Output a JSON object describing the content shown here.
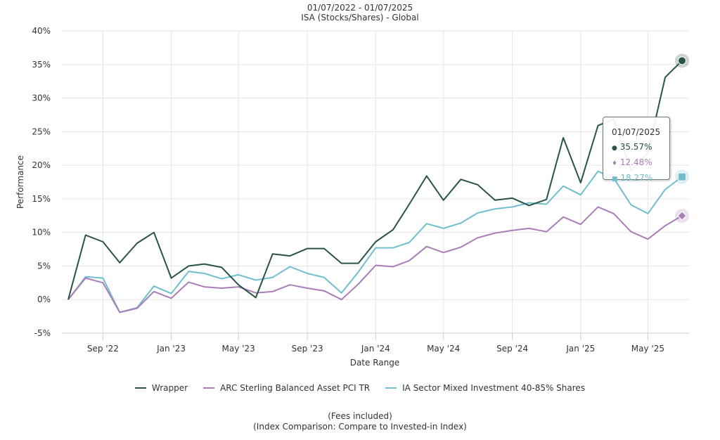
{
  "header": {
    "period": "01/07/2022 - 01/07/2025",
    "wrapper_line": "ISA (Stocks/Shares) - Global"
  },
  "footer": {
    "fees": "(Fees included)",
    "comparison": "(Index Comparison: Compare to Invested-in Index)"
  },
  "tooltip": {
    "date": "01/07/2025",
    "values": [
      {
        "symbol": "●",
        "text": "35.57%"
      },
      {
        "symbol": "♦",
        "text": "12.48%"
      },
      {
        "symbol": "■",
        "text": "18.27%"
      }
    ]
  },
  "chart_data": {
    "type": "line",
    "xlabel": "Date Range",
    "ylabel": "Performance",
    "ylim": [
      -5,
      40
    ],
    "xlim": [
      "2022-07-01",
      "2025-07-01"
    ],
    "y_ticks": [
      -5,
      0,
      5,
      10,
      15,
      20,
      25,
      30,
      35,
      40
    ],
    "y_tick_labels": [
      "-5%",
      "0%",
      "5%",
      "10%",
      "15%",
      "20%",
      "25%",
      "30%",
      "35%",
      "40%"
    ],
    "x_ticks": [
      "2022-09-01",
      "2023-01-01",
      "2023-05-01",
      "2023-09-01",
      "2024-01-01",
      "2024-05-01",
      "2024-09-01",
      "2025-01-01",
      "2025-05-01"
    ],
    "x_tick_labels": [
      "Sep '22",
      "Jan '23",
      "May '23",
      "Sep '23",
      "Jan '24",
      "May '24",
      "Sep '24",
      "Jan '25",
      "May '25"
    ],
    "grid": true,
    "legend_position": "bottom-center",
    "x": [
      "2022-07-01",
      "2022-08-01",
      "2022-09-01",
      "2022-10-01",
      "2022-11-01",
      "2022-12-01",
      "2023-01-01",
      "2023-02-01",
      "2023-03-01",
      "2023-04-01",
      "2023-05-01",
      "2023-06-01",
      "2023-07-01",
      "2023-08-01",
      "2023-09-01",
      "2023-10-01",
      "2023-11-01",
      "2023-12-01",
      "2024-01-01",
      "2024-02-01",
      "2024-03-01",
      "2024-04-01",
      "2024-05-01",
      "2024-06-01",
      "2024-07-01",
      "2024-08-01",
      "2024-09-01",
      "2024-10-01",
      "2024-11-01",
      "2024-12-01",
      "2025-01-01",
      "2025-02-01",
      "2025-03-01",
      "2025-04-01",
      "2025-05-01",
      "2025-06-01",
      "2025-07-01"
    ],
    "series": [
      {
        "name": "Wrapper",
        "color": "#2a5347",
        "marker": "circle",
        "values": [
          0.0,
          9.6,
          8.6,
          5.5,
          8.4,
          10.0,
          3.2,
          5.0,
          5.3,
          4.8,
          2.2,
          0.3,
          6.8,
          6.5,
          7.6,
          7.6,
          5.4,
          5.4,
          8.6,
          10.4,
          14.2,
          18.4,
          14.8,
          17.9,
          17.1,
          14.8,
          15.1,
          14.0,
          14.9,
          24.1,
          17.4,
          25.9,
          26.9,
          19.2,
          21.9,
          33.1,
          35.57
        ]
      },
      {
        "name": "ARC Sterling Balanced Asset PCI TR",
        "color": "#a97eb8",
        "marker": "diamond",
        "values": [
          0.0,
          3.2,
          2.5,
          -1.9,
          -1.3,
          1.2,
          0.2,
          2.6,
          1.9,
          1.7,
          1.9,
          1.0,
          1.2,
          2.2,
          1.7,
          1.3,
          0.0,
          2.3,
          5.1,
          4.9,
          5.8,
          7.9,
          7.0,
          7.8,
          9.2,
          9.9,
          10.3,
          10.6,
          10.1,
          12.3,
          11.2,
          13.8,
          12.8,
          10.1,
          9.0,
          11.0,
          12.48
        ]
      },
      {
        "name": "IA Sector Mixed Investment 40-85% Shares",
        "color": "#6fbfcc",
        "marker": "square",
        "values": [
          0.0,
          3.4,
          3.2,
          -1.9,
          -1.2,
          2.0,
          0.9,
          4.2,
          3.9,
          3.1,
          3.7,
          2.9,
          3.3,
          4.9,
          3.9,
          3.3,
          1.0,
          4.1,
          7.7,
          7.7,
          8.5,
          11.3,
          10.6,
          11.4,
          12.9,
          13.5,
          13.8,
          14.4,
          14.2,
          16.9,
          15.6,
          19.1,
          18.1,
          14.1,
          12.8,
          16.4,
          18.27
        ]
      }
    ]
  }
}
